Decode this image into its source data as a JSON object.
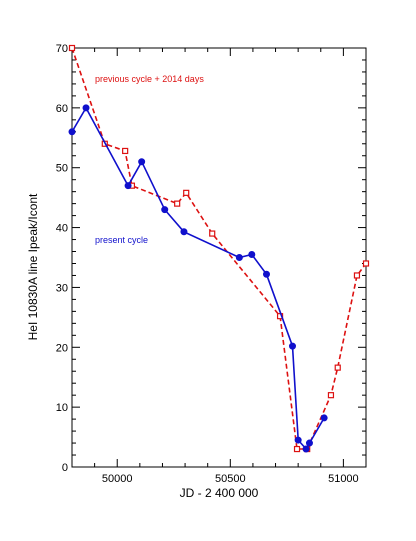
{
  "chart_data": {
    "type": "line",
    "xlabel": "JD - 2 400 000",
    "ylabel": "HeI 10830A line Ipeak/Icont",
    "xlim": [
      49800,
      51100
    ],
    "ylim": [
      0,
      70
    ],
    "x_ticks": [
      50000,
      50500,
      51000
    ],
    "x_tick_labels": [
      "50000",
      "50500",
      "51000"
    ],
    "y_ticks": [
      0,
      10,
      20,
      30,
      40,
      50,
      60,
      70
    ],
    "y_tick_labels": [
      "0",
      "10",
      "20",
      "30",
      "40",
      "50",
      "60",
      "70"
    ],
    "grid": false,
    "legend": "none",
    "annotations": [
      {
        "text": "previous cycle + 2014 days",
        "series": "previous cycle + 2014 days"
      },
      {
        "text": "present cycle",
        "series": "present cycle"
      }
    ],
    "series": [
      {
        "name": "present cycle",
        "color": "#1010cc",
        "line_style": "solid",
        "marker": "filled-circle",
        "points": [
          {
            "x": 49800,
            "y": 56
          },
          {
            "x": 49862,
            "y": 60
          },
          {
            "x": 50048,
            "y": 47
          },
          {
            "x": 50108,
            "y": 51
          },
          {
            "x": 50210,
            "y": 43
          },
          {
            "x": 50295,
            "y": 39.3
          },
          {
            "x": 50540,
            "y": 35
          },
          {
            "x": 50595,
            "y": 35.5
          },
          {
            "x": 50660,
            "y": 32.2
          },
          {
            "x": 50775,
            "y": 20.2
          },
          {
            "x": 50800,
            "y": 4.5
          },
          {
            "x": 50835,
            "y": 3
          },
          {
            "x": 50850,
            "y": 4
          },
          {
            "x": 50915,
            "y": 8.2
          }
        ]
      },
      {
        "name": "previous cycle + 2014 days",
        "color": "#dd1111",
        "line_style": "dashed",
        "marker": "open-square",
        "points": [
          {
            "x": 49800,
            "y": 70
          },
          {
            "x": 49945,
            "y": 54
          },
          {
            "x": 50035,
            "y": 52.8
          },
          {
            "x": 50065,
            "y": 47
          },
          {
            "x": 50265,
            "y": 44
          },
          {
            "x": 50305,
            "y": 45.8
          },
          {
            "x": 50420,
            "y": 39
          },
          {
            "x": 50720,
            "y": 25.2
          },
          {
            "x": 50795,
            "y": 3
          },
          {
            "x": 50840,
            "y": 3
          },
          {
            "x": 50945,
            "y": 12
          },
          {
            "x": 50975,
            "y": 16.6
          },
          {
            "x": 51060,
            "y": 32
          },
          {
            "x": 51100,
            "y": 34
          }
        ]
      }
    ]
  }
}
